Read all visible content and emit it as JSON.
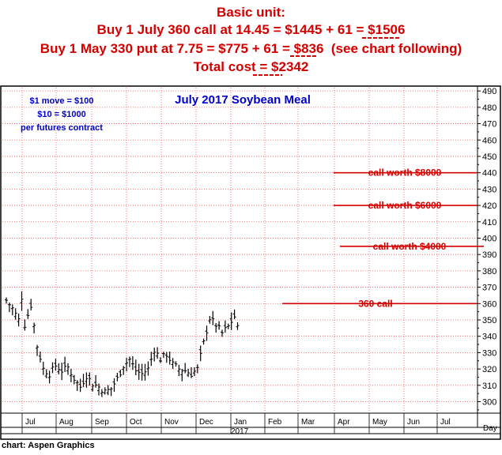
{
  "header": {
    "line1": "Basic unit:",
    "line2": "Buy 1 July 360 call at 14.45 = $1445 + 61 = $1506",
    "line3": "Buy 1 May 330 put at 7.75 = $775 + 61 = $836  (see chart following)",
    "line4": "Total cost = $2342"
  },
  "footer": {
    "credit": "chart: Aspen Graphics"
  },
  "colors": {
    "text_red": "#d40000",
    "text_blue": "#0000c8",
    "grid": "#ff5050",
    "bars": "#000000"
  },
  "chart_data": {
    "type": "bar",
    "subtype": "ohlc",
    "title": "July 2017 Soybean Meal",
    "notes": [
      "$1 move = $100",
      "$10 = $1000",
      "per futures contract"
    ],
    "ylim": [
      293,
      492
    ],
    "yticks": [
      300,
      310,
      320,
      330,
      340,
      350,
      360,
      370,
      380,
      390,
      400,
      410,
      420,
      430,
      440,
      450,
      460,
      470,
      480,
      490
    ],
    "x_labels": [
      "Jul",
      "Aug",
      "Sep",
      "Oct",
      "Nov",
      "Dec",
      "Jan",
      "Feb",
      "Mar",
      "Apr",
      "May",
      "Jun",
      "Jul",
      "Day"
    ],
    "year_label": "2017",
    "year_label_under": "Jan",
    "price_path": [
      [
        0,
        362
      ],
      [
        2,
        357
      ],
      [
        4,
        350
      ],
      [
        5,
        364
      ],
      [
        6,
        347
      ],
      [
        8,
        359
      ],
      [
        10,
        334
      ],
      [
        12,
        320
      ],
      [
        14,
        317
      ],
      [
        16,
        322
      ],
      [
        18,
        319
      ],
      [
        20,
        321
      ],
      [
        22,
        314
      ],
      [
        24,
        309
      ],
      [
        26,
        316
      ],
      [
        28,
        311
      ],
      [
        30,
        309
      ],
      [
        32,
        306
      ],
      [
        34,
        308
      ],
      [
        36,
        314
      ],
      [
        38,
        322
      ],
      [
        40,
        326
      ],
      [
        42,
        319
      ],
      [
        44,
        317
      ],
      [
        46,
        320
      ],
      [
        48,
        332
      ],
      [
        50,
        326
      ],
      [
        52,
        329
      ],
      [
        54,
        323
      ],
      [
        56,
        320
      ],
      [
        58,
        319
      ],
      [
        60,
        317
      ],
      [
        62,
        320
      ],
      [
        64,
        336
      ],
      [
        66,
        351
      ],
      [
        68,
        347
      ],
      [
        70,
        342
      ],
      [
        72,
        346
      ],
      [
        74,
        352
      ],
      [
        75,
        345
      ]
    ],
    "annotations": [
      {
        "label": "call worth $8000",
        "y": 440
      },
      {
        "label": "call worth $6000",
        "y": 420
      },
      {
        "label": "call worth $4000",
        "y": 395
      },
      {
        "label": "360 call",
        "y": 360
      }
    ]
  }
}
